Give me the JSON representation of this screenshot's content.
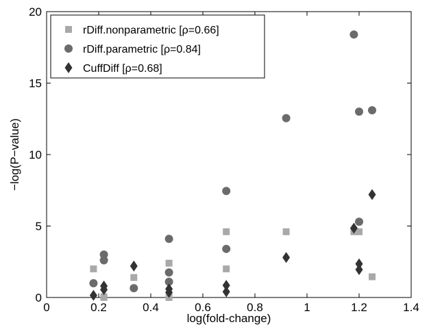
{
  "chart_data": {
    "type": "scatter",
    "title": "",
    "xlabel": "log(fold-change)",
    "ylabel": "−log(P−value)",
    "xlim": [
      0,
      1.4
    ],
    "ylim": [
      0,
      20
    ],
    "xticks": [
      0,
      0.2,
      0.4,
      0.6,
      0.8,
      1,
      1.2,
      1.4
    ],
    "xtick_labels": [
      "0",
      "0.2",
      "0.4",
      "0.6",
      "0.8",
      "1",
      "1.2",
      "1.4"
    ],
    "yticks": [
      0,
      5,
      10,
      15,
      20
    ],
    "ytick_labels": [
      "0",
      "5",
      "10",
      "15",
      "20"
    ],
    "grid": false,
    "legend_position": "top-left",
    "series": [
      {
        "name": "rDiff.nonparametric [ρ=0.66]",
        "marker": "square",
        "color": "#a9a9a9",
        "points": [
          [
            0.18,
            2.0
          ],
          [
            0.22,
            0.05
          ],
          [
            0.22,
            0.0
          ],
          [
            0.335,
            1.4
          ],
          [
            0.47,
            2.4
          ],
          [
            0.47,
            0.0
          ],
          [
            0.69,
            4.6
          ],
          [
            0.69,
            2.0
          ],
          [
            0.92,
            4.6
          ],
          [
            1.18,
            4.6
          ],
          [
            1.2,
            4.6
          ],
          [
            1.25,
            1.45
          ]
        ]
      },
      {
        "name": "rDiff.parametric [ρ=0.84]",
        "marker": "circle",
        "color": "#6b6b6b",
        "points": [
          [
            0.18,
            1.0
          ],
          [
            0.22,
            3.0
          ],
          [
            0.22,
            2.6
          ],
          [
            0.335,
            0.65
          ],
          [
            0.47,
            4.1
          ],
          [
            0.47,
            1.75
          ],
          [
            0.47,
            1.1
          ],
          [
            0.69,
            7.45
          ],
          [
            0.69,
            3.4
          ],
          [
            0.92,
            12.55
          ],
          [
            1.18,
            18.4
          ],
          [
            1.2,
            13.0
          ],
          [
            1.2,
            5.3
          ],
          [
            1.25,
            13.1
          ]
        ]
      },
      {
        "name": "CuffDiff [ρ=0.68]",
        "marker": "diamond",
        "color": "#333333",
        "points": [
          [
            0.18,
            0.15
          ],
          [
            0.22,
            0.8
          ],
          [
            0.22,
            0.55
          ],
          [
            0.335,
            2.2
          ],
          [
            0.47,
            0.6
          ],
          [
            0.47,
            0.35
          ],
          [
            0.69,
            0.85
          ],
          [
            0.69,
            0.4
          ],
          [
            0.92,
            2.8
          ],
          [
            1.18,
            4.85
          ],
          [
            1.2,
            2.35
          ],
          [
            1.2,
            1.95
          ],
          [
            1.25,
            7.2
          ]
        ]
      }
    ]
  }
}
